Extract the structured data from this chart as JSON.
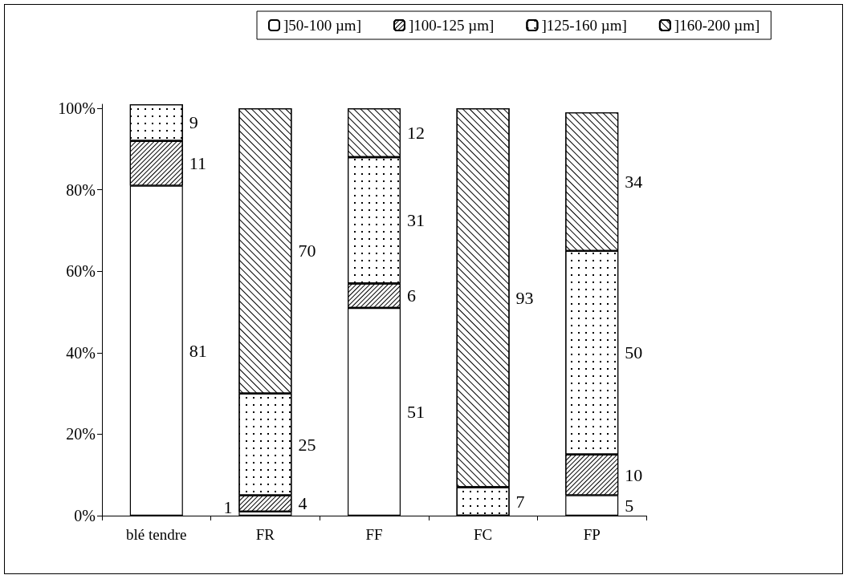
{
  "chart_data": {
    "type": "bar",
    "stacked": true,
    "categories": [
      "blé tendre",
      "FR",
      "FF",
      "FC",
      "FP"
    ],
    "series": [
      {
        "name": "]50-100 µm]",
        "color": "#ffffff",
        "values": [
          81,
          1,
          51,
          0,
          5
        ],
        "value_labels": [
          "81",
          "1",
          "51",
          null,
          "5"
        ]
      },
      {
        "name": "]100-125 µm]",
        "color": "#ffffff",
        "values": [
          11,
          4,
          6,
          0,
          10
        ],
        "value_labels": [
          "11",
          "4",
          "6",
          null,
          "10"
        ]
      },
      {
        "name": "]125-160 µm]",
        "color": "#ffffff",
        "values": [
          9,
          25,
          31,
          7,
          50
        ],
        "value_labels": [
          "9",
          "25",
          "31",
          "7",
          "50"
        ]
      },
      {
        "name": "]160-200 µm]",
        "color": "#ffffff",
        "values": [
          0,
          70,
          12,
          93,
          34
        ],
        "value_labels": [
          null,
          "70",
          "12",
          "93",
          "34"
        ]
      }
    ],
    "ylim": [
      0,
      101
    ],
    "yticks": [
      {
        "value": 0,
        "label": "0%"
      },
      {
        "value": 20,
        "label": "20%"
      },
      {
        "value": 40,
        "label": "40%"
      },
      {
        "value": 60,
        "label": "60%"
      },
      {
        "value": 80,
        "label": "80%"
      },
      {
        "value": 100,
        "label": "100%"
      }
    ],
    "grid": false,
    "legend": "top"
  }
}
